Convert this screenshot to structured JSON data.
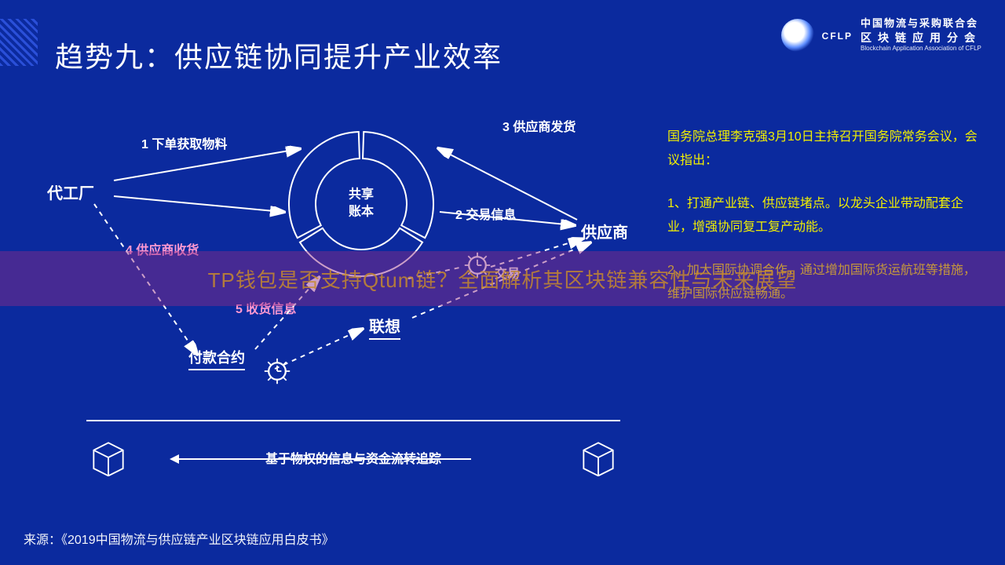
{
  "title": "趋势九：供应链协同提升产业效率",
  "logo": {
    "line1": "中国物流与采购联合会",
    "line2": "区块链应用分会",
    "en": "Blockchain Application Association of CFLP",
    "brand": "CFLP"
  },
  "diagram": {
    "center_label_1": "共享",
    "center_label_2": "账本",
    "donut": {
      "segments": [
        {
          "start": -90,
          "end": 30,
          "color": "#1a3fd0"
        },
        {
          "start": 30,
          "end": 150,
          "color": "#0a2685"
        },
        {
          "start": 150,
          "end": 270,
          "color": "#2a52e8"
        }
      ],
      "inner_r": 58,
      "outer_r": 92,
      "gap_deg": 4
    },
    "nodes": {
      "factory": "代工厂",
      "supplier": "供应商",
      "lenovo": "联想",
      "contract": "付款合约",
      "trade": "交易"
    },
    "steps": {
      "s1": "1 下单获取物料",
      "s2": "2 交易信息",
      "s3": "3 供应商发货",
      "s4": "4 供应商收货",
      "s5": "5 收货信息"
    },
    "bottom_label": "基于物权的信息与资金流转追踪"
  },
  "right": {
    "p1": "国务院总理李克强3月10日主持召开国务院常务会议，会议指出：",
    "p2": "1、打通产业链、供应链堵点。以龙头企业带动配套企业，增强协同复工复产动能。",
    "p3": "2、加大国际协调合作，通过增加国际货运航班等措施，维护国际供应链畅通。"
  },
  "overlay_text": "TP钱包是否支持Qtum链？全面解析其区块链兼容性与未来展望",
  "source": "来源：《2019中国物流与供应链产业区块链应用白皮书》",
  "colors": {
    "bg": "#0b2a9e",
    "accent": "#f3f000",
    "pink": "#ff99d1",
    "overlay": "rgba(142,42,134,.45)",
    "overlay_text": "#c78a2e"
  }
}
